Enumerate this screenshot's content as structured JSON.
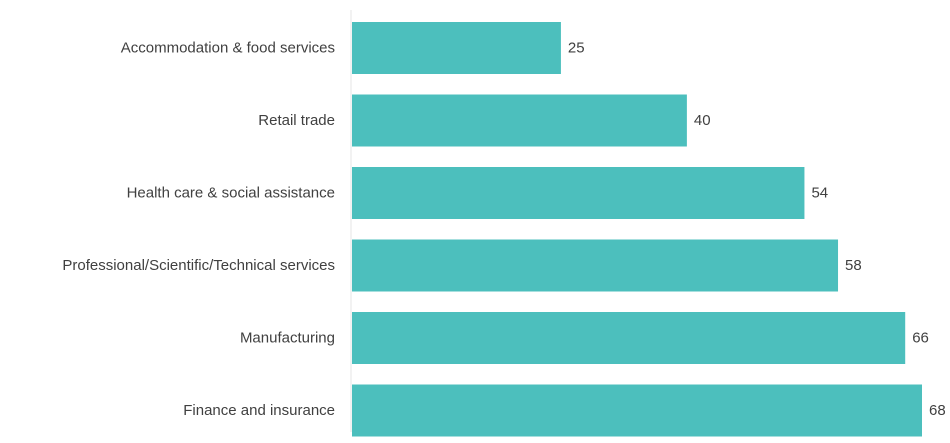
{
  "chart_data": {
    "type": "bar",
    "orientation": "horizontal",
    "categories": [
      "Accommodation & food services",
      "Retail trade",
      "Health care & social assistance",
      "Professional/Scientific/Technical services",
      "Manufacturing",
      "Finance and insurance"
    ],
    "values": [
      25,
      40,
      54,
      58,
      66,
      68
    ],
    "data_labels": [
      "25",
      "40",
      "54",
      "58",
      "66",
      "68"
    ],
    "title": "",
    "xlabel": "",
    "ylabel": "",
    "xlim": [
      0,
      68
    ],
    "grid": false,
    "legend": "none",
    "colors": {
      "bar": "#4cbfbd",
      "axis_line": "#e6e6e6",
      "category_label": "#404040",
      "value_label": "#404040"
    }
  }
}
